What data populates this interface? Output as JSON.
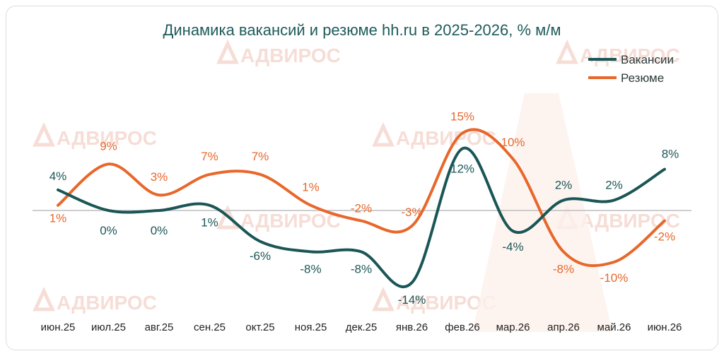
{
  "chart_data": {
    "type": "line",
    "title": "Динамика вакансий и резюме hh.ru в 2025-2026, % м/м",
    "categories": [
      "июн.25",
      "июл.25",
      "авг.25",
      "сен.25",
      "окт.25",
      "ноя.25",
      "дек.25",
      "янв.26",
      "фев.26",
      "мар.26",
      "апр.26",
      "май.26",
      "июн.26"
    ],
    "series": [
      {
        "name": "Вакансии",
        "color": "#1b5656",
        "values": [
          4,
          0,
          0,
          1,
          -6,
          -8,
          -8,
          -14,
          12,
          -4,
          2,
          2,
          8
        ],
        "labels": [
          "4%",
          "0%",
          "0%",
          "1%",
          "-6%",
          "-8%",
          "-8%",
          "-14%",
          "12%",
          "-4%",
          "2%",
          "2%",
          "8%"
        ]
      },
      {
        "name": "Резюме",
        "color": "#e8672b",
        "values": [
          1,
          9,
          3,
          7,
          7,
          1,
          -2,
          -3,
          15,
          10,
          -8,
          -10,
          -2
        ],
        "labels": [
          "1%",
          "9%",
          "3%",
          "7%",
          "7%",
          "1%",
          "-2%",
          "-3%",
          "15%",
          "10%",
          "-8%",
          "-10%",
          "-2%"
        ]
      }
    ],
    "legend_position": "top-right",
    "grid": false
  },
  "watermark": {
    "text": "АДВИРОС",
    "color": "#f6ddd6"
  }
}
